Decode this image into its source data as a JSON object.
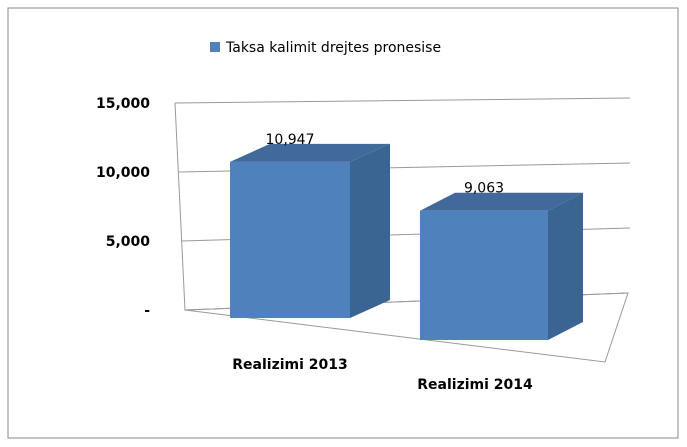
{
  "chart_data": {
    "type": "bar3d",
    "series": [
      {
        "name": "Taksa kalimit drejtes pronesise",
        "color": "#4f81bd",
        "values": [
          10947,
          9063
        ],
        "value_labels": [
          "10,947",
          "9,063"
        ]
      }
    ],
    "categories": [
      "Realizimi 2013",
      "Realizimi 2014"
    ],
    "ylim": [
      0,
      15000
    ],
    "yticks": [
      {
        "value": 0,
        "label": "-"
      },
      {
        "value": 5000,
        "label": "5,000"
      },
      {
        "value": 10000,
        "label": "10,000"
      },
      {
        "value": 15000,
        "label": "15,000"
      }
    ],
    "grid": true,
    "legend": "top"
  }
}
